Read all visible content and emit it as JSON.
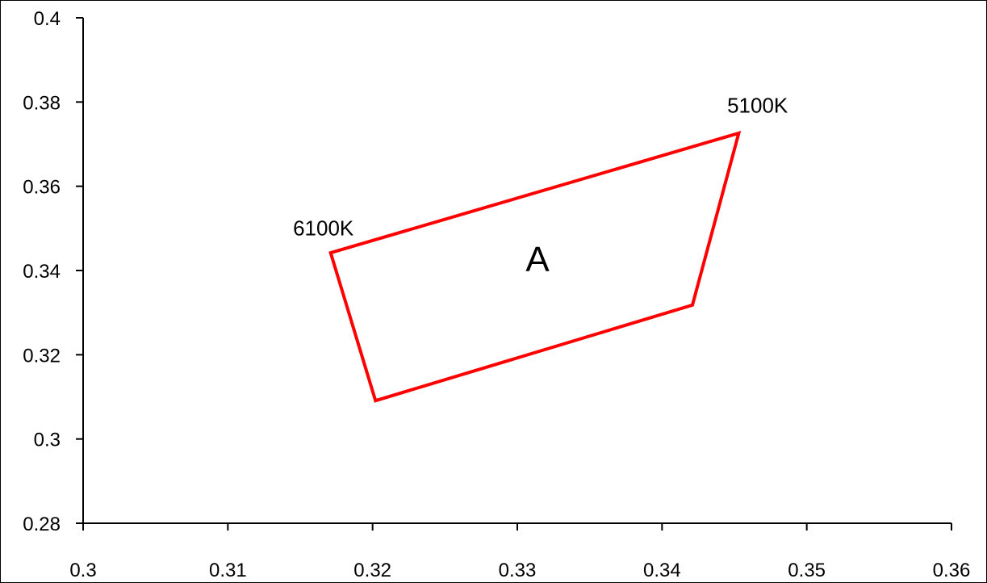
{
  "chart_data": {
    "type": "scatter",
    "title": "",
    "xlabel": "",
    "ylabel": "",
    "xlim": [
      0.3,
      0.36
    ],
    "ylim": [
      0.28,
      0.4
    ],
    "x_ticks": [
      "0.3",
      "0.31",
      "0.32",
      "0.33",
      "0.34",
      "0.35",
      "0.36"
    ],
    "y_ticks": [
      "0.4",
      "0.38",
      "0.36",
      "0.34",
      "0.32",
      "0.3",
      "0.28"
    ],
    "grid": false,
    "legend": "none",
    "series": [
      {
        "closed": true,
        "color": "#ff0000",
        "points": [
          {
            "x": 0.3171,
            "y": 0.3442
          },
          {
            "x": 0.3453,
            "y": 0.3726
          },
          {
            "x": 0.3421,
            "y": 0.3318
          },
          {
            "x": 0.3202,
            "y": 0.3091
          }
        ]
      }
    ],
    "annotations": [
      {
        "text": "5100K",
        "x": 0.3466,
        "y": 0.3775
      },
      {
        "text": "6100K",
        "x": 0.3166,
        "y": 0.3483
      },
      {
        "text": "A",
        "x": 0.3314,
        "y": 0.3398
      }
    ]
  }
}
